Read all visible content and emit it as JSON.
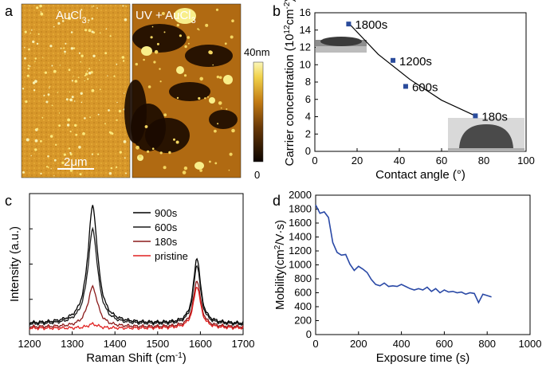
{
  "panel_labels": {
    "a": "a",
    "b": "b",
    "c": "c",
    "d": "d"
  },
  "panel_a": {
    "left_title": "AuCl",
    "left_sub": "3",
    "right_title": "UV + AuCl",
    "right_sub": "3",
    "scalebar_label": "2μm",
    "colorbar_top": "40nm",
    "colorbar_bottom": "0",
    "colors": {
      "bright": "#f3e24a",
      "mid": "#c77d12",
      "dark": "#150800"
    }
  },
  "chart_data": [
    {
      "id": "b",
      "type": "scatter",
      "xlabel": "Contact angle (°)",
      "ylabel_main": "Carrier concentration (10",
      "ylabel_sup": "12",
      "ylabel_mid": "cm",
      "ylabel_sup2": "-2",
      "ylabel_end": ")",
      "xlim": [
        0,
        100
      ],
      "ylim": [
        0,
        16
      ],
      "xticks": [
        0,
        20,
        40,
        60,
        80,
        100
      ],
      "yticks": [
        0,
        2,
        4,
        6,
        8,
        10,
        12,
        14,
        16
      ],
      "points": [
        {
          "x": 16,
          "y": 14.7,
          "label": "1800s"
        },
        {
          "x": 37,
          "y": 10.5,
          "label": "1200s"
        },
        {
          "x": 43,
          "y": 7.5,
          "label": "600s"
        },
        {
          "x": 76,
          "y": 4.1,
          "label": "180s"
        }
      ],
      "fit_curve": {
        "x": [
          16,
          30,
          45,
          60,
          76
        ],
        "y": [
          14.8,
          11.2,
          8.3,
          5.9,
          4.1
        ]
      },
      "marker_color": "#2a4b9b"
    },
    {
      "id": "c",
      "type": "line",
      "xlabel": "Raman Shift (cm",
      "xlabel_sup": "-1",
      "xlabel_end": ")",
      "ylabel": "Intensity (a.u.)",
      "xlim": [
        1200,
        1700
      ],
      "xticks": [
        1200,
        1300,
        1400,
        1500,
        1600,
        1700
      ],
      "series": [
        {
          "name": "900s",
          "color": "#000000",
          "d_height": 1.0,
          "g_height": 0.56,
          "base": 0.06
        },
        {
          "name": "600s",
          "color": "#1a1a1a",
          "d_height": 0.81,
          "g_height": 0.51,
          "base": 0.05
        },
        {
          "name": "180s",
          "color": "#8b1a1a",
          "d_height": 0.34,
          "g_height": 0.4,
          "base": 0.03
        },
        {
          "name": "pristine",
          "color": "#e02020",
          "d_height": 0.035,
          "g_height": 0.36,
          "base": 0.02
        }
      ]
    },
    {
      "id": "d",
      "type": "line",
      "xlabel": "Exposure time (s)",
      "ylabel_main": "Mobility(cm",
      "ylabel_sup": "2",
      "ylabel_end": "/V·s)",
      "xlim": [
        0,
        1000
      ],
      "ylim": [
        0,
        2000
      ],
      "xticks": [
        0,
        200,
        400,
        600,
        800,
        1000
      ],
      "yticks": [
        0,
        200,
        400,
        600,
        800,
        1000,
        1200,
        1400,
        1600,
        1800,
        2000
      ],
      "color": "#2a49a6",
      "x": [
        0,
        20,
        40,
        60,
        80,
        100,
        120,
        140,
        160,
        180,
        200,
        220,
        240,
        260,
        280,
        300,
        320,
        340,
        360,
        380,
        400,
        420,
        440,
        460,
        480,
        500,
        520,
        540,
        560,
        580,
        600,
        620,
        640,
        660,
        680,
        700,
        720,
        740,
        760,
        780,
        800,
        820
      ],
      "y": [
        1860,
        1740,
        1760,
        1680,
        1320,
        1180,
        1140,
        1150,
        1010,
        920,
        980,
        940,
        890,
        790,
        720,
        700,
        740,
        690,
        700,
        690,
        720,
        690,
        660,
        640,
        660,
        640,
        680,
        620,
        660,
        600,
        640,
        610,
        620,
        600,
        610,
        580,
        600,
        590,
        460,
        580,
        560,
        540
      ]
    }
  ]
}
